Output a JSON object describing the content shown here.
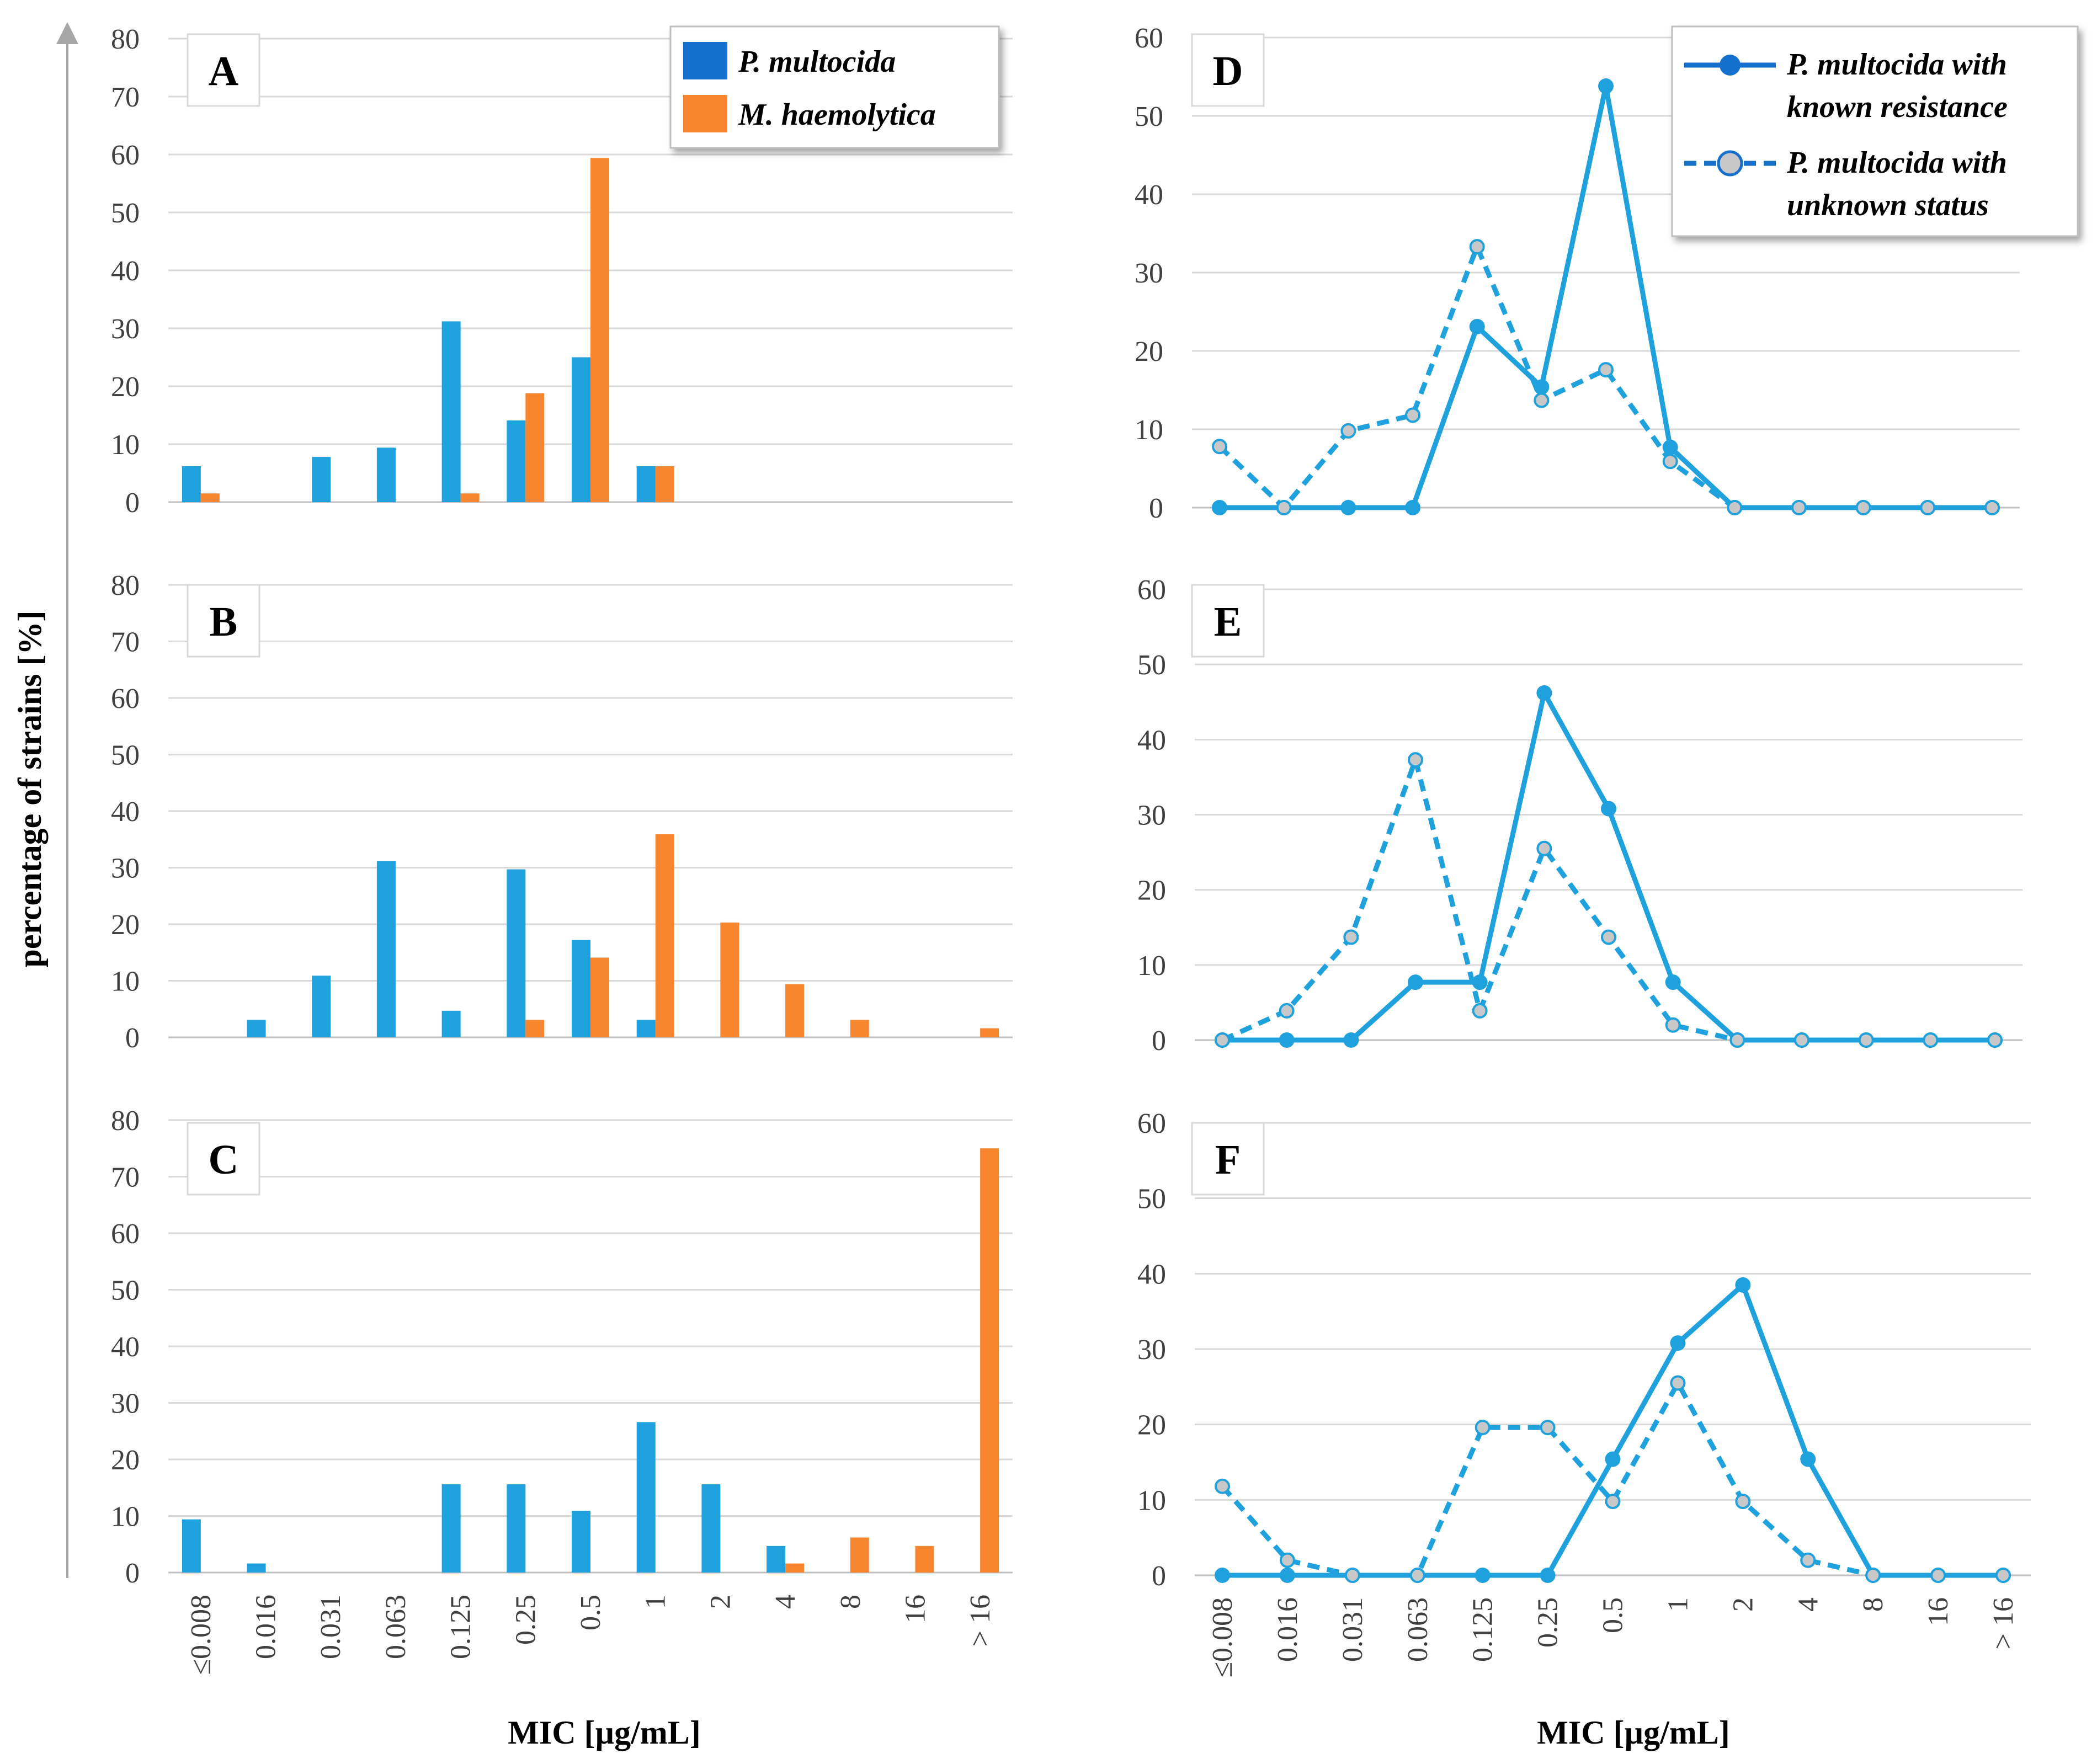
{
  "y_axis_label": "percentage of strains [%]",
  "x_axis_label_left": "MIC [µg/mL]",
  "x_axis_label_right": "MIC [µg/mL]",
  "colors": {
    "blue": "#1ea1dd",
    "orange": "#f7862e",
    "legend_blue": "#1570cd",
    "grid": "#d9d9d9",
    "marker_fill": "#c8c8c8"
  },
  "bar_legend": {
    "series": [
      {
        "name": "P. multocida",
        "color": "#1570cd"
      },
      {
        "name": "M. haemolytica",
        "color": "#f7862e"
      }
    ]
  },
  "line_legend": {
    "series": [
      {
        "name_line1": "P. multocida with",
        "name_line2": "known resistance",
        "style": "solid"
      },
      {
        "name_line1": "P. multocida with",
        "name_line2": "unknown status",
        "style": "dashed"
      }
    ]
  },
  "chart_data": [
    {
      "panel": "A",
      "type": "bar",
      "categories": [
        "≤0.008",
        "0.016",
        "0.031",
        "0.063",
        "0.125",
        "0.25",
        "0.5",
        "1",
        "2",
        "4",
        "8",
        "16",
        "> 16"
      ],
      "ylim": [
        0,
        80
      ],
      "yticks": [
        0,
        10,
        20,
        30,
        40,
        50,
        60,
        70,
        80
      ],
      "legend": "top-right",
      "series": [
        {
          "name": "P. multocida",
          "values": [
            6.2,
            0,
            7.8,
            9.4,
            31.2,
            14.1,
            25,
            6.2,
            0,
            0,
            0,
            0,
            0
          ]
        },
        {
          "name": "M. haemolytica",
          "values": [
            1.5,
            0,
            0,
            0,
            1.5,
            18.8,
            59.4,
            6.2,
            0,
            0,
            0,
            0,
            0
          ]
        }
      ]
    },
    {
      "panel": "B",
      "type": "bar",
      "categories": [
        "≤0.008",
        "0.016",
        "0.031",
        "0.063",
        "0.125",
        "0.25",
        "0.5",
        "1",
        "2",
        "4",
        "8",
        "16",
        "> 16"
      ],
      "ylim": [
        0,
        80
      ],
      "yticks": [
        0,
        10,
        20,
        30,
        40,
        50,
        60,
        70,
        80
      ],
      "series": [
        {
          "name": "P. multocida",
          "values": [
            0,
            3.1,
            10.9,
            31.2,
            4.7,
            29.7,
            17.2,
            3.1,
            0,
            0,
            0,
            0,
            0
          ]
        },
        {
          "name": "M. haemolytica",
          "values": [
            0,
            0,
            0,
            0,
            0,
            3.1,
            14.1,
            35.9,
            20.3,
            9.4,
            3.1,
            0,
            1.6
          ]
        }
      ]
    },
    {
      "panel": "C",
      "type": "bar",
      "categories": [
        "≤0.008",
        "0.016",
        "0.031",
        "0.063",
        "0.125",
        "0.25",
        "0.5",
        "1",
        "2",
        "4",
        "8",
        "16",
        "> 16"
      ],
      "ylim": [
        0,
        80
      ],
      "yticks": [
        0,
        10,
        20,
        30,
        40,
        50,
        60,
        70,
        80
      ],
      "xlabel": "MIC [µg/mL]",
      "series": [
        {
          "name": "P. multocida",
          "values": [
            9.4,
            1.6,
            0,
            0,
            15.6,
            15.6,
            10.9,
            26.6,
            15.6,
            4.7,
            0,
            0,
            0
          ]
        },
        {
          "name": "M. haemolytica",
          "values": [
            0,
            0,
            0,
            0,
            0,
            0,
            0,
            0,
            0,
            1.6,
            6.2,
            4.7,
            75
          ]
        }
      ]
    },
    {
      "panel": "D",
      "type": "line",
      "categories": [
        "≤0.008",
        "0.016",
        "0.031",
        "0.063",
        "0.125",
        "0.25",
        "0.5",
        "1",
        "2",
        "4",
        "8",
        "16",
        "> 16"
      ],
      "ylim": [
        0,
        60
      ],
      "yticks": [
        0,
        10,
        20,
        30,
        40,
        50,
        60
      ],
      "legend": "top-right",
      "series": [
        {
          "name": "P. multocida with known resistance",
          "values": [
            0,
            0,
            0,
            0,
            23.1,
            15.4,
            53.8,
            7.7,
            0,
            0,
            0,
            0,
            0
          ]
        },
        {
          "name": "P. multocida with unknown status",
          "values": [
            7.8,
            0,
            9.8,
            11.8,
            33.3,
            13.7,
            17.6,
            5.9,
            0,
            0,
            0,
            0,
            0
          ]
        }
      ]
    },
    {
      "panel": "E",
      "type": "line",
      "categories": [
        "≤0.008",
        "0.016",
        "0.031",
        "0.063",
        "0.125",
        "0.25",
        "0.5",
        "1",
        "2",
        "4",
        "8",
        "16",
        "> 16"
      ],
      "ylim": [
        0,
        60
      ],
      "yticks": [
        0,
        10,
        20,
        30,
        40,
        50,
        60
      ],
      "series": [
        {
          "name": "P. multocida with known resistance",
          "values": [
            0,
            0,
            0,
            7.7,
            7.7,
            46.2,
            30.8,
            7.7,
            0,
            0,
            0,
            0,
            0
          ]
        },
        {
          "name": "P. multocida with unknown status",
          "values": [
            0,
            3.9,
            13.7,
            37.3,
            3.9,
            25.5,
            13.7,
            2,
            0,
            0,
            0,
            0,
            0
          ]
        }
      ]
    },
    {
      "panel": "F",
      "type": "line",
      "categories": [
        "≤0.008",
        "0.016",
        "0.031",
        "0.063",
        "0.125",
        "0.25",
        "0.5",
        "1",
        "2",
        "4",
        "8",
        "16",
        "> 16"
      ],
      "ylim": [
        0,
        60
      ],
      "yticks": [
        0,
        10,
        20,
        30,
        40,
        50,
        60
      ],
      "xlabel": "MIC [µg/mL]",
      "series": [
        {
          "name": "P. multocida with known resistance",
          "values": [
            0,
            0,
            0,
            0,
            0,
            0,
            15.4,
            30.8,
            38.5,
            15.4,
            0,
            0,
            0
          ]
        },
        {
          "name": "P. multocida with unknown status",
          "values": [
            11.8,
            2,
            0,
            0,
            19.6,
            19.6,
            9.8,
            25.5,
            9.8,
            2,
            0,
            0,
            0
          ]
        }
      ]
    }
  ]
}
